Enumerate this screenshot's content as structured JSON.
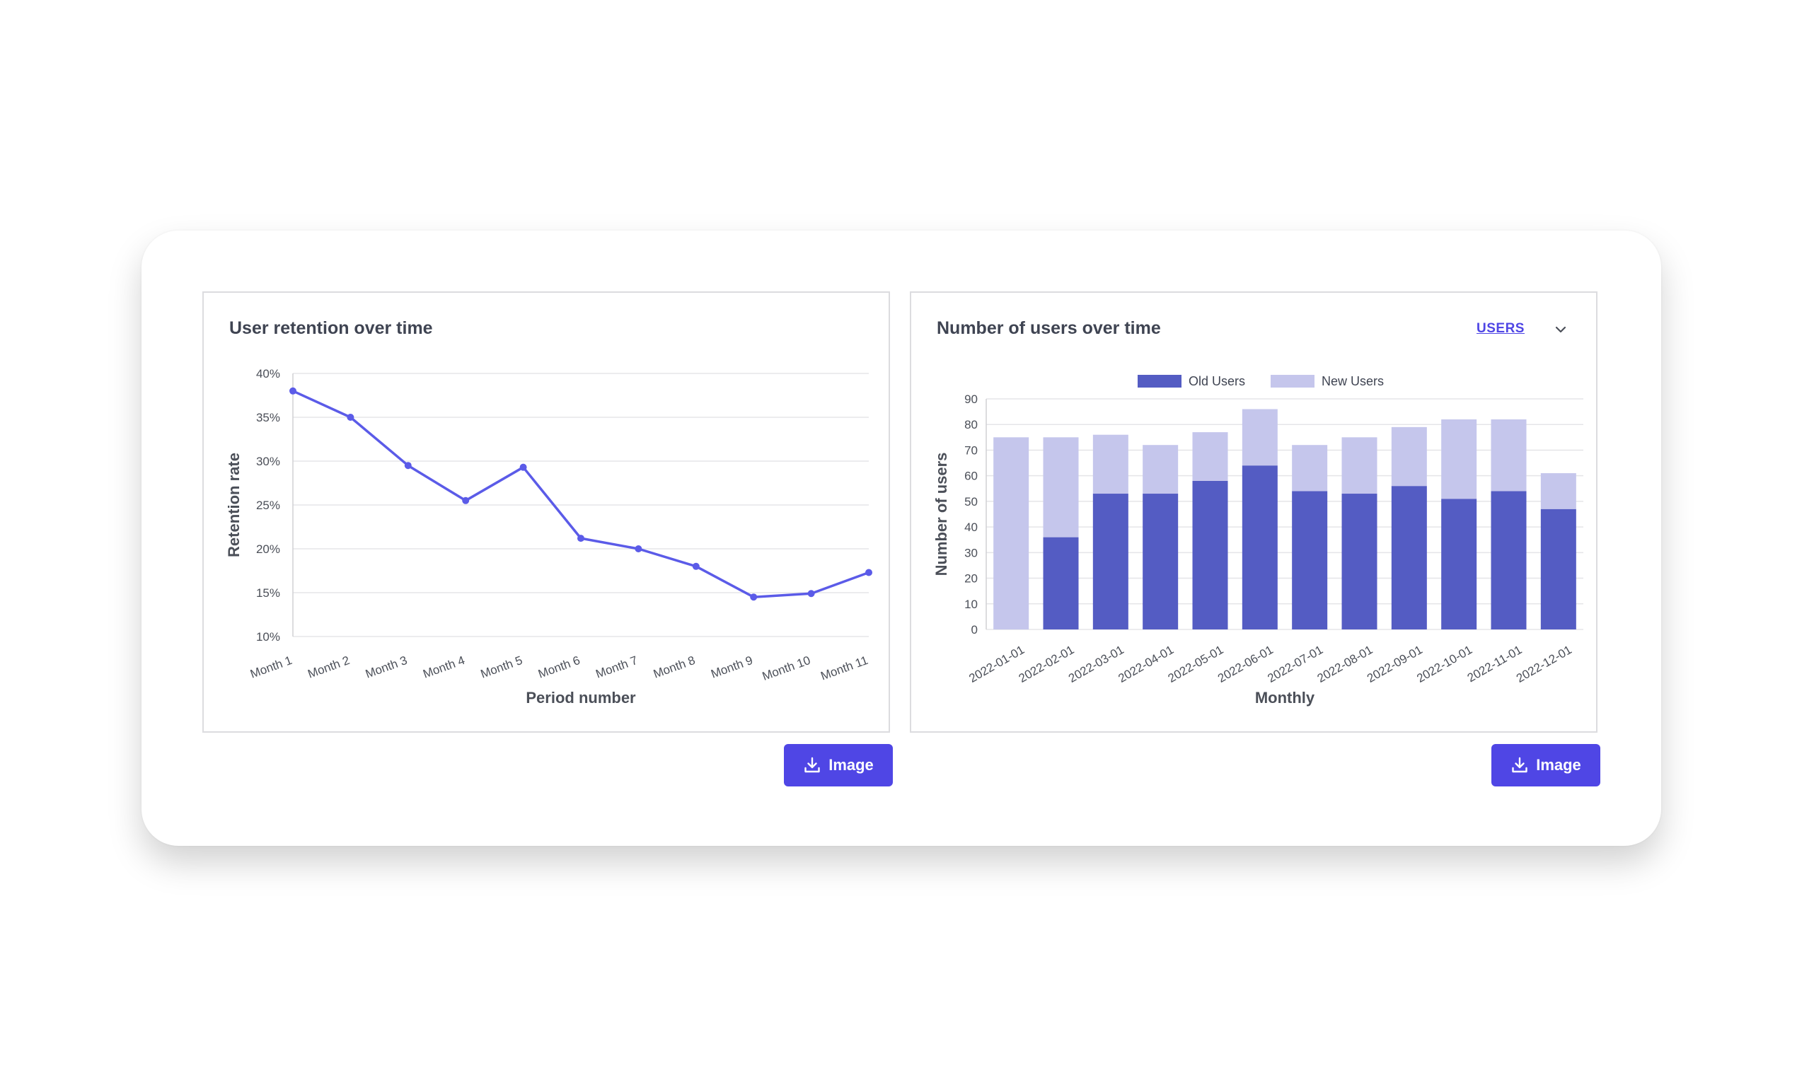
{
  "retention": {
    "title": "User retention over time",
    "button_label": "Image",
    "chart_data": {
      "type": "line",
      "categories": [
        "Month 1",
        "Month 2",
        "Month 3",
        "Month 4",
        "Month 5",
        "Month 6",
        "Month 7",
        "Month 8",
        "Month 9",
        "Month 10",
        "Month 11"
      ],
      "values": [
        38,
        35,
        29.5,
        25.5,
        29.3,
        21.2,
        20,
        18,
        14.5,
        14.9,
        17.3
      ],
      "xlabel": "Period number",
      "ylabel": "Retention rate",
      "ylim": [
        10,
        40
      ],
      "yticks": [
        "10%",
        "15%",
        "20%",
        "25%",
        "30%",
        "35%",
        "40%"
      ],
      "color": "#5b5be8",
      "grid": true
    }
  },
  "users": {
    "title": "Number of users over time",
    "selector_label": "USERS",
    "button_label": "Image",
    "chart_data": {
      "type": "bar",
      "stacked": true,
      "categories": [
        "2022-01-01",
        "2022-02-01",
        "2022-03-01",
        "2022-04-01",
        "2022-05-01",
        "2022-06-01",
        "2022-07-01",
        "2022-08-01",
        "2022-09-01",
        "2022-10-01",
        "2022-11-01",
        "2022-12-01"
      ],
      "series": [
        {
          "name": "Old Users",
          "color": "#545cc3",
          "values": [
            0,
            36,
            53,
            53,
            58,
            64,
            54,
            53,
            56,
            51,
            54,
            47
          ]
        },
        {
          "name": "New Users",
          "color": "#c5c6ec",
          "values": [
            75,
            39,
            23,
            19,
            19,
            22,
            18,
            22,
            23,
            31,
            28,
            14
          ]
        }
      ],
      "xlabel": "Monthly",
      "ylabel": "Number of users",
      "ylim": [
        0,
        90
      ],
      "yticks": [
        "0",
        "10",
        "20",
        "30",
        "40",
        "50",
        "60",
        "70",
        "80",
        "90"
      ],
      "legend": "top",
      "grid": true
    }
  }
}
